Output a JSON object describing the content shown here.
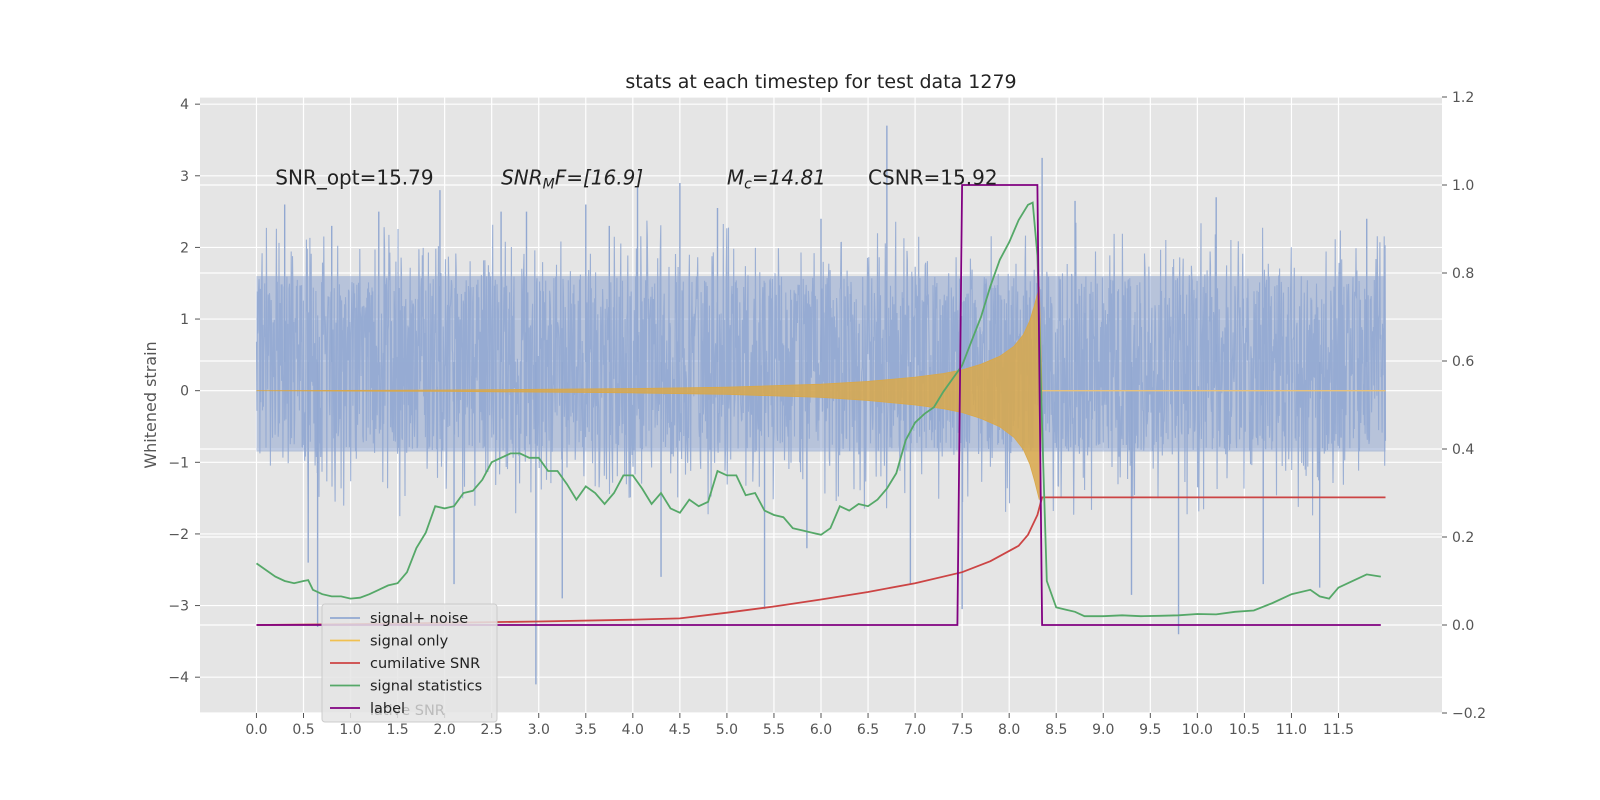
{
  "chart_data": {
    "type": "line",
    "title": "stats at each timestep for test data 1279",
    "ylabel": "Whitened strain",
    "xlabel": "",
    "xlim": [
      -0.6,
      12.6
    ],
    "ylim": [
      -4.5,
      4.1
    ],
    "y2lim": [
      -0.2,
      1.2
    ],
    "grid": true,
    "legend_position": "lower-left",
    "x_ticks": [
      0.0,
      0.5,
      1.0,
      1.5,
      2.0,
      2.5,
      3.0,
      3.5,
      4.0,
      4.5,
      5.0,
      5.5,
      6.0,
      6.5,
      7.0,
      7.5,
      8.0,
      8.5,
      9.0,
      9.5,
      10.0,
      10.5,
      11.0,
      11.5
    ],
    "x_tick_labels": [
      "0.0",
      "0.5",
      "1.0",
      "1.5",
      "2.0",
      "2.5",
      "3.0",
      "3.5",
      "4.0",
      "4.5",
      "5.0",
      "5.5",
      "6.0",
      "6.5",
      "7.0",
      "7.5",
      "8.0",
      "8.5",
      "9.0",
      "9.5",
      "10.0",
      "10.5",
      "11.0",
      "11.5"
    ],
    "y_ticks": [
      -4,
      -3,
      -2,
      -1,
      0,
      1,
      2,
      3,
      4
    ],
    "y_tick_labels": [
      "−4",
      "−3",
      "−2",
      "−1",
      "0",
      "1",
      "2",
      "3",
      "4"
    ],
    "y2_ticks": [
      -0.2,
      0.0,
      0.2,
      0.4,
      0.6,
      0.8,
      1.0,
      1.2
    ],
    "y2_tick_labels": [
      "−0.2",
      "0.0",
      "0.2",
      "0.4",
      "0.6",
      "0.8",
      "1.0",
      "1.2"
    ],
    "annotations": [
      {
        "text": "SNR_opt=15.79",
        "x": 0.2,
        "y": 2.88
      },
      {
        "main": "SNR",
        "sub": "M",
        "tail": "F=[16.9]",
        "x": 2.6,
        "y": 2.88
      },
      {
        "main": "M",
        "sub": "c",
        "tail": "=14.81",
        "x": 5.0,
        "y": 2.88
      },
      {
        "text": "CSNR=15.92",
        "x": 6.5,
        "y": 2.88
      }
    ],
    "series": [
      {
        "name": "signal+ noise",
        "axis": "left",
        "color": "#92a8d1",
        "x_range": [
          0.0,
          12.0
        ],
        "band_inner": [
          -0.85,
          1.6
        ],
        "extremes": {
          "x": [
            0.3,
            0.55,
            0.65,
            0.8,
            1.3,
            1.95,
            2.1,
            2.6,
            2.87,
            2.97,
            3.25,
            3.5,
            3.75,
            4.05,
            4.3,
            4.5,
            4.9,
            5.4,
            5.85,
            6.0,
            6.7,
            6.95,
            7.5,
            8.35,
            8.7,
            9.3,
            9.8,
            10.2,
            10.7,
            11.3,
            11.8
          ],
          "y": [
            2.6,
            -2.4,
            -3.3,
            2.3,
            2.5,
            2.8,
            -2.7,
            2.5,
            2.5,
            -4.1,
            -2.9,
            2.6,
            2.3,
            2.85,
            -2.6,
            2.9,
            2.55,
            -3.05,
            -2.2,
            2.4,
            3.7,
            -2.7,
            -3.05,
            3.25,
            2.65,
            -2.85,
            -3.4,
            2.7,
            -2.7,
            -2.75,
            2.4
          ]
        }
      },
      {
        "name": "signal only",
        "axis": "left",
        "color": "#d9a84a",
        "envelope": {
          "x": [
            0.0,
            2.0,
            4.0,
            5.0,
            6.0,
            6.5,
            7.0,
            7.3,
            7.5,
            7.7,
            7.9,
            8.05,
            8.15,
            8.22,
            8.27,
            8.32,
            8.35
          ],
          "y": [
            0.0,
            0.01,
            0.03,
            0.05,
            0.09,
            0.13,
            0.19,
            0.24,
            0.29,
            0.37,
            0.48,
            0.62,
            0.78,
            0.98,
            1.2,
            1.45,
            0.0
          ]
        },
        "tail_value": 0.0
      },
      {
        "name": "cumilative SNR",
        "axis": "right",
        "color": "#cc4444",
        "x": [
          0.0,
          1.0,
          2.0,
          3.0,
          4.0,
          4.5,
          5.0,
          5.5,
          6.0,
          6.5,
          7.0,
          7.5,
          7.8,
          8.1,
          8.2,
          8.3,
          8.35,
          12.0
        ],
        "y": [
          0.0,
          0.002,
          0.005,
          0.008,
          0.012,
          0.015,
          0.028,
          0.042,
          0.058,
          0.075,
          0.095,
          0.12,
          0.145,
          0.18,
          0.205,
          0.25,
          0.29,
          0.29
        ]
      },
      {
        "name": "signal statistics",
        "axis": "right",
        "color": "#55a868",
        "x": [
          0.0,
          0.1,
          0.2,
          0.3,
          0.4,
          0.5,
          0.55,
          0.6,
          0.7,
          0.8,
          0.9,
          1.0,
          1.1,
          1.2,
          1.3,
          1.4,
          1.5,
          1.6,
          1.7,
          1.8,
          1.9,
          2.0,
          2.1,
          2.2,
          2.3,
          2.4,
          2.5,
          2.6,
          2.7,
          2.8,
          2.9,
          3.0,
          3.1,
          3.2,
          3.3,
          3.4,
          3.5,
          3.6,
          3.7,
          3.8,
          3.9,
          4.0,
          4.1,
          4.2,
          4.3,
          4.4,
          4.5,
          4.6,
          4.7,
          4.8,
          4.9,
          5.0,
          5.1,
          5.2,
          5.3,
          5.4,
          5.5,
          5.6,
          5.7,
          5.8,
          5.9,
          6.0,
          6.1,
          6.2,
          6.3,
          6.4,
          6.5,
          6.6,
          6.7,
          6.8,
          6.9,
          7.0,
          7.1,
          7.2,
          7.3,
          7.4,
          7.5,
          7.6,
          7.7,
          7.8,
          7.9,
          8.0,
          8.1,
          8.2,
          8.25,
          8.3,
          8.35,
          8.4,
          8.5,
          8.6,
          8.7,
          8.8,
          9.0,
          9.2,
          9.4,
          9.6,
          9.8,
          10.0,
          10.2,
          10.4,
          10.6,
          10.8,
          11.0,
          11.2,
          11.3,
          11.4,
          11.5,
          11.6,
          11.8,
          11.95
        ],
        "y": [
          0.14,
          0.125,
          0.11,
          0.1,
          0.095,
          0.1,
          0.102,
          0.08,
          0.07,
          0.065,
          0.065,
          0.06,
          0.062,
          0.07,
          0.08,
          0.09,
          0.095,
          0.12,
          0.175,
          0.21,
          0.27,
          0.265,
          0.27,
          0.3,
          0.305,
          0.33,
          0.37,
          0.38,
          0.39,
          0.39,
          0.38,
          0.38,
          0.35,
          0.35,
          0.32,
          0.285,
          0.315,
          0.3,
          0.275,
          0.3,
          0.34,
          0.34,
          0.31,
          0.275,
          0.3,
          0.265,
          0.255,
          0.285,
          0.27,
          0.28,
          0.35,
          0.34,
          0.34,
          0.295,
          0.3,
          0.26,
          0.25,
          0.245,
          0.22,
          0.215,
          0.21,
          0.205,
          0.22,
          0.27,
          0.26,
          0.275,
          0.27,
          0.285,
          0.31,
          0.345,
          0.42,
          0.46,
          0.48,
          0.495,
          0.53,
          0.56,
          0.59,
          0.645,
          0.7,
          0.77,
          0.83,
          0.87,
          0.92,
          0.955,
          0.96,
          0.84,
          0.45,
          0.1,
          0.04,
          0.035,
          0.03,
          0.02,
          0.02,
          0.022,
          0.02,
          0.021,
          0.022,
          0.025,
          0.024,
          0.03,
          0.033,
          0.05,
          0.07,
          0.08,
          0.065,
          0.06,
          0.085,
          0.095,
          0.115,
          0.11
        ]
      },
      {
        "name": "label",
        "axis": "right",
        "color": "#800080",
        "x": [
          0.0,
          7.45,
          7.5,
          8.3,
          8.35,
          11.95
        ],
        "y": [
          0.0,
          0.0,
          1.0,
          1.0,
          0.0,
          0.0
        ]
      }
    ],
    "legend": [
      "signal+ noise",
      "signal only",
      "cumilative SNR",
      "signal statistics",
      "label"
    ],
    "legend_ghost_text": "lative SNR"
  }
}
